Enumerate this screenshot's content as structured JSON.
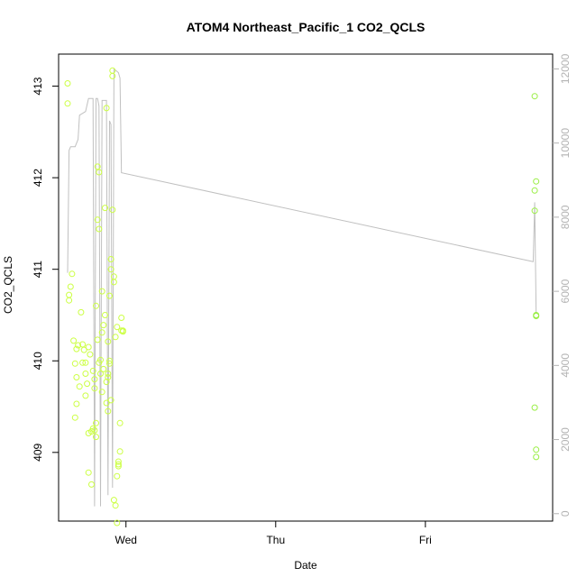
{
  "chart_data": {
    "type": "scatter",
    "title": "ATOM4 Northeast_Pacific_1 CO2_QCLS",
    "xlabel": "Date",
    "ylabel": "CO2_QCLS",
    "x_ticks": [
      {
        "label": "Wed",
        "value": 0.0
      },
      {
        "label": "Thu",
        "value": 1.0
      },
      {
        "label": "Fri",
        "value": 2.0
      }
    ],
    "xlim": [
      -0.45,
      2.85
    ],
    "ylim": [
      408.25,
      413.35
    ],
    "y_ticks": [
      409,
      410,
      411,
      412,
      413
    ],
    "y2lim": [
      -200,
      12400
    ],
    "y2_ticks": [
      0,
      2000,
      4000,
      6000,
      8000,
      10000,
      12000
    ],
    "colors": {
      "axis": "#000000",
      "right_axis": "#b3b3b3",
      "line": "#c0c0c0",
      "points_early": "#ccff44",
      "points_late": "#99ee44"
    },
    "series": [
      {
        "kind": "points",
        "points": [
          [
            -0.39,
            413.03
          ],
          [
            -0.39,
            412.81
          ],
          [
            -0.36,
            410.95
          ],
          [
            -0.37,
            410.81
          ],
          [
            -0.38,
            410.72
          ],
          [
            -0.38,
            410.66
          ],
          [
            -0.35,
            410.22
          ],
          [
            -0.34,
            409.97
          ],
          [
            -0.33,
            410.13
          ],
          [
            -0.32,
            410.17
          ],
          [
            -0.33,
            409.82
          ],
          [
            -0.31,
            409.72
          ],
          [
            -0.33,
            409.53
          ],
          [
            -0.34,
            409.38
          ],
          [
            -0.3,
            410.53
          ],
          [
            -0.29,
            410.18
          ],
          [
            -0.28,
            410.12
          ],
          [
            -0.29,
            409.98
          ],
          [
            -0.27,
            409.86
          ],
          [
            -0.26,
            409.75
          ],
          [
            -0.27,
            409.62
          ],
          [
            -0.25,
            409.21
          ],
          [
            -0.25,
            408.78
          ],
          [
            -0.23,
            408.65
          ],
          [
            -0.24,
            410.07
          ],
          [
            -0.22,
            409.89
          ],
          [
            -0.21,
            409.7
          ],
          [
            -0.2,
            409.32
          ],
          [
            -0.21,
            409.24
          ],
          [
            -0.2,
            409.17
          ],
          [
            -0.22,
            409.26
          ],
          [
            -0.19,
            410.23
          ],
          [
            -0.2,
            410.6
          ],
          [
            -0.16,
            409.66
          ],
          [
            -0.17,
            409.86
          ],
          [
            -0.17,
            410.01
          ],
          [
            -0.16,
            410.31
          ],
          [
            -0.15,
            410.39
          ],
          [
            -0.16,
            410.76
          ],
          [
            -0.19,
            411.54
          ],
          [
            -0.18,
            411.44
          ],
          [
            -0.19,
            412.12
          ],
          [
            -0.18,
            412.06
          ],
          [
            -0.13,
            412.76
          ],
          [
            -0.14,
            411.67
          ],
          [
            -0.12,
            410.21
          ],
          [
            -0.11,
            410.0
          ],
          [
            -0.12,
            409.86
          ],
          [
            -0.13,
            409.77
          ],
          [
            -0.13,
            409.54
          ],
          [
            -0.12,
            409.45
          ],
          [
            -0.11,
            409.97
          ],
          [
            -0.1,
            409.57
          ],
          [
            -0.11,
            410.71
          ],
          [
            -0.1,
            411.0
          ],
          [
            -0.08,
            410.92
          ],
          [
            -0.1,
            411.11
          ],
          [
            -0.09,
            411.65
          ],
          [
            -0.09,
            413.17
          ],
          [
            -0.09,
            413.11
          ],
          [
            -0.08,
            410.86
          ],
          [
            -0.07,
            410.26
          ],
          [
            -0.06,
            410.37
          ],
          [
            -0.08,
            408.48
          ],
          [
            -0.07,
            408.42
          ],
          [
            -0.06,
            408.23
          ],
          [
            -0.05,
            408.9
          ],
          [
            -0.05,
            408.87
          ],
          [
            -0.06,
            408.74
          ],
          [
            -0.04,
            409.32
          ],
          [
            -0.03,
            410.47
          ],
          [
            -0.03,
            410.33
          ],
          [
            -0.02,
            410.33
          ],
          [
            -0.04,
            409.01
          ],
          [
            -0.05,
            408.85
          ],
          [
            -0.02,
            410.32
          ],
          [
            -0.14,
            410.5
          ],
          [
            -0.12,
            409.82
          ],
          [
            -0.25,
            410.15
          ],
          [
            -0.23,
            409.23
          ],
          [
            -0.21,
            409.8
          ],
          [
            -0.18,
            409.98
          ],
          [
            -0.15,
            409.91
          ],
          [
            -0.27,
            409.98
          ]
        ]
      },
      {
        "kind": "points_late",
        "points": [
          [
            2.73,
            412.89
          ],
          [
            2.74,
            411.96
          ],
          [
            2.73,
            411.86
          ],
          [
            2.73,
            411.64
          ],
          [
            2.74,
            410.5
          ],
          [
            2.74,
            410.49
          ],
          [
            2.73,
            409.49
          ],
          [
            2.74,
            409.03
          ],
          [
            2.74,
            408.95
          ]
        ]
      },
      {
        "kind": "line",
        "axis": "right",
        "points": [
          [
            -0.39,
            6500
          ],
          [
            -0.38,
            9800
          ],
          [
            -0.37,
            9900
          ],
          [
            -0.34,
            9900
          ],
          [
            -0.32,
            10100
          ],
          [
            -0.31,
            10750
          ],
          [
            -0.27,
            10850
          ],
          [
            -0.25,
            11200
          ],
          [
            -0.22,
            11200
          ],
          [
            -0.21,
            200
          ],
          [
            -0.2,
            11200
          ],
          [
            -0.19,
            11200
          ],
          [
            -0.18,
            11000
          ],
          [
            -0.17,
            200
          ],
          [
            -0.16,
            11150
          ],
          [
            -0.13,
            11150
          ],
          [
            -0.12,
            500
          ],
          [
            -0.11,
            10600
          ],
          [
            -0.1,
            10500
          ],
          [
            -0.09,
            700
          ],
          [
            -0.08,
            12000
          ],
          [
            -0.05,
            11900
          ],
          [
            -0.04,
            11750
          ],
          [
            -0.03,
            9200
          ],
          [
            2.72,
            6800
          ],
          [
            2.73,
            8400
          ],
          [
            2.74,
            5400
          ]
        ]
      }
    ]
  }
}
